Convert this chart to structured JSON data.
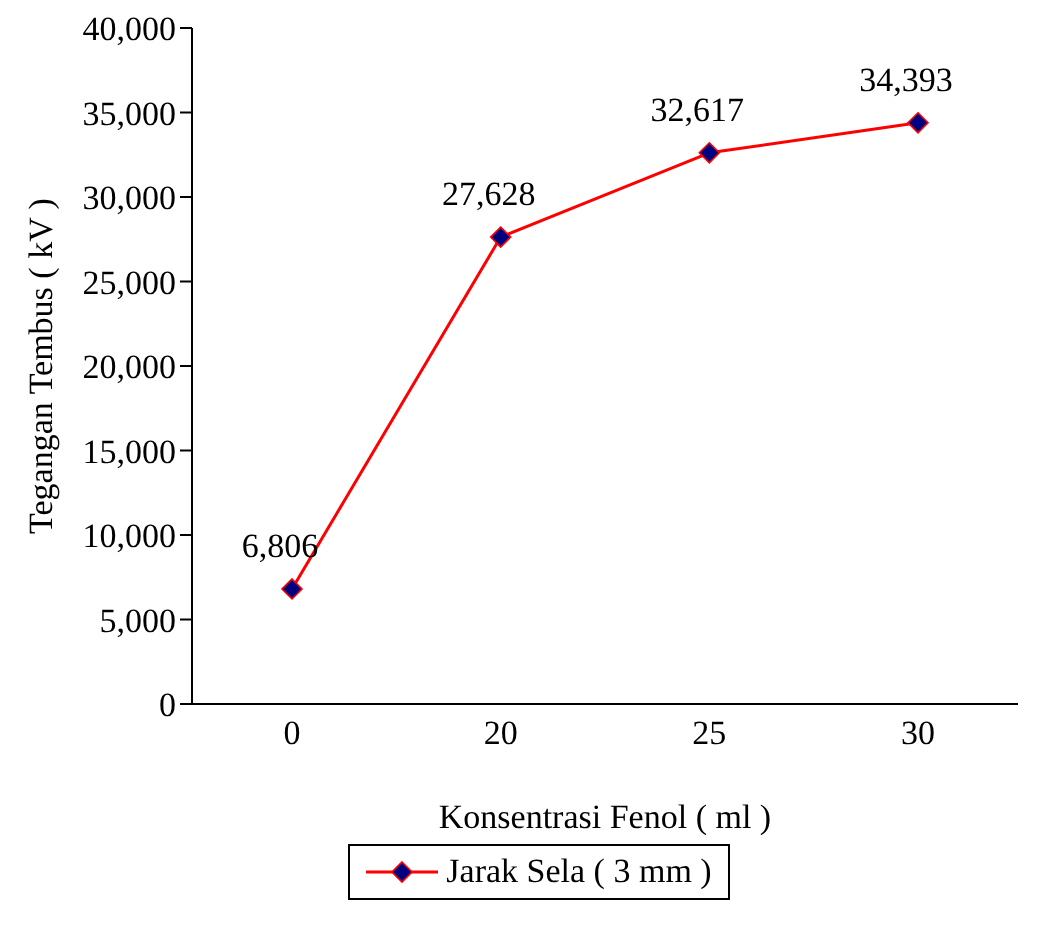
{
  "chart_data": {
    "type": "line",
    "xlabel": "Konsentrasi Fenol ( ml )",
    "ylabel": "Tegangan Tembus ( kV )",
    "categories": [
      "0",
      "20",
      "25",
      "30"
    ],
    "series": [
      {
        "name": "Jarak Sela ( 3 mm )",
        "color": "#ff0000",
        "values": [
          6806,
          27628,
          32617,
          34393
        ],
        "value_labels": [
          "6,806",
          "27,628",
          "32,617",
          "34,393"
        ]
      }
    ],
    "ylim": [
      0,
      40000
    ],
    "yticks": [
      0,
      {
        "value": 5000,
        "label": "5,000"
      },
      {
        "value": 10000,
        "label": "10,000"
      },
      {
        "value": 15000,
        "label": "15,000"
      },
      {
        "value": 20000,
        "label": "20,000"
      },
      {
        "value": 25000,
        "label": "25,000"
      },
      {
        "value": 30000,
        "label": "30,000"
      },
      {
        "value": 35000,
        "label": "35,000"
      },
      {
        "value": 40000,
        "label": "40,000"
      }
    ],
    "marker": "diamond",
    "legend": "bottom",
    "grid": false
  }
}
